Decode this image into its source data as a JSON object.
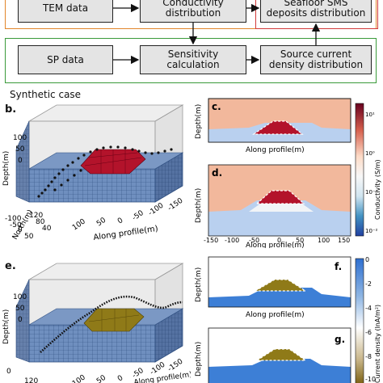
{
  "flowchart": {
    "boxes": [
      {
        "id": "tem",
        "label": "TEM data"
      },
      {
        "id": "cond",
        "line1": "Conductivity",
        "line2": "distribution"
      },
      {
        "id": "deposit",
        "line1": "Seafloor SMS",
        "line2": "deposits distribution"
      },
      {
        "id": "sp",
        "label": "SP data"
      },
      {
        "id": "sens",
        "line1": "Sensitivity",
        "line2": "calculation"
      },
      {
        "id": "source",
        "line1": "Source current",
        "line2": "density distribution"
      }
    ],
    "colors": {
      "top_frame": "#e2852a",
      "bottom_frame": "#3a9a3a",
      "result_frame": "#d23a3a",
      "box_fill": "#e4e4e4"
    }
  },
  "section_title": "Synthetic case",
  "panels": {
    "b": {
      "label": "b.",
      "zlabel": "Depth(m)",
      "zticks": [
        "100",
        "50",
        "0"
      ],
      "ylabel": "North(m)",
      "yticks": [
        "-100",
        "-50",
        "0",
        "50"
      ],
      "yticks_lower": [
        "120",
        "80",
        "40"
      ],
      "xlabel": "Along profile(m)",
      "xticks": [
        "100",
        "50",
        "0",
        "-50",
        "-100",
        "-150"
      ]
    },
    "c": {
      "label": "c.",
      "ylabel": "Depth(m)",
      "xlabel": "Along profile(m)"
    },
    "d": {
      "label": "d.",
      "ylabel": "Depth(m)",
      "xlabel": "Along profile(m)",
      "xticks": [
        "-150",
        "-100",
        "-50",
        "0",
        "50",
        "100",
        "150"
      ]
    },
    "conductivity_bar": {
      "label": "Conductivity (S/m)",
      "ticks": [
        "10¹",
        "10⁰",
        "10⁻¹",
        "10⁻²"
      ],
      "colors": [
        "#67001f",
        "#d6604d",
        "#fddbc7",
        "#f7f7f7",
        "#d1e5f0",
        "#4393c3",
        "#2140a0"
      ]
    },
    "e": {
      "label": "e.",
      "zlabel": "Depth(m)",
      "zticks": [
        "100",
        "50",
        "0"
      ],
      "yticks": [
        "0",
        "120"
      ],
      "xlabel": "Along profile(m)",
      "xticks": [
        "100",
        "50",
        "0",
        "-50",
        "-100",
        "-150"
      ]
    },
    "f": {
      "label": "f.",
      "ylabel": "Depth(m)",
      "xlabel": "Along profile(m)"
    },
    "g": {
      "label": "g.",
      "ylabel": "Depth(m)"
    },
    "current_bar": {
      "label": "Current density (lnA/m²)",
      "ticks": [
        "0",
        "-2",
        "-4",
        "-6",
        "-8",
        "-10"
      ],
      "colors": [
        "#2e6fd0",
        "#8fb6e3",
        "#ffffff",
        "#c9b68a",
        "#7a5f10"
      ]
    },
    "colors": {
      "sea": "#f2b89c",
      "host": "#b9d0ef",
      "mound_red": "#b3132b",
      "mound_gold": "#8f7a18",
      "grid_blue": "#5d7fae",
      "grid_dark": "#3e5f8f"
    }
  }
}
